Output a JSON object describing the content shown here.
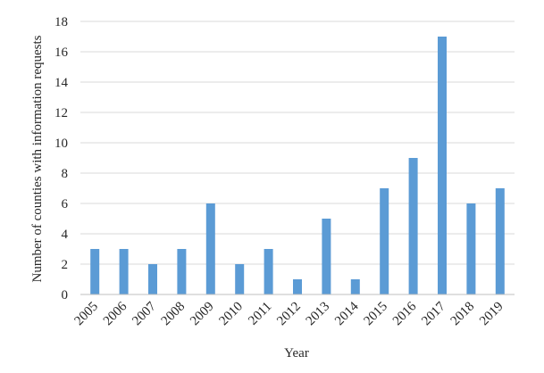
{
  "chart_data": {
    "type": "bar",
    "categories": [
      "2005",
      "2006",
      "2007",
      "2008",
      "2009",
      "2010",
      "2011",
      "2012",
      "2013",
      "2014",
      "2015",
      "2016",
      "2017",
      "2018",
      "2019"
    ],
    "values": [
      3,
      3,
      2,
      3,
      6,
      2,
      3,
      1,
      5,
      1,
      7,
      9,
      17,
      6,
      7
    ],
    "title": "",
    "xlabel": "Year",
    "ylabel": "Number of counties with information requests",
    "ylim": [
      0,
      18
    ],
    "yticks": [
      0,
      2,
      4,
      6,
      8,
      10,
      12,
      14,
      16,
      18
    ],
    "grid": true,
    "legend": "none",
    "bar_color": "#5b9bd5",
    "grid_color": "#d9d9d9",
    "axis_color": "#bfbfbf"
  }
}
